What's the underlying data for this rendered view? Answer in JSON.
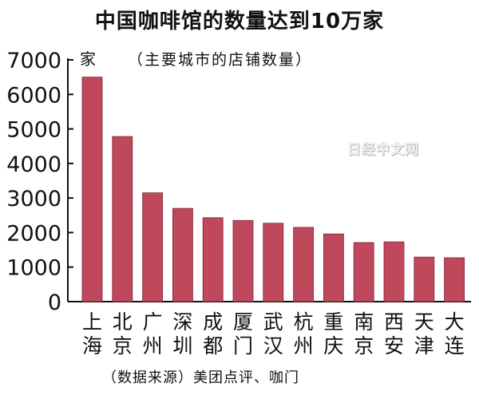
{
  "chart_data": {
    "type": "bar",
    "title": "中国咖啡馆的数量达到10万家",
    "subtitle": "（主要城市的店铺数量）",
    "unit": "家",
    "source": "（数据来源）美团点评、咖门",
    "watermark": "日经中文网",
    "categories": [
      "上海",
      "北京",
      "广州",
      "深圳",
      "成都",
      "厦门",
      "武汉",
      "杭州",
      "重庆",
      "南京",
      "西安",
      "天津",
      "大连"
    ],
    "values": [
      6500,
      4780,
      3150,
      2700,
      2430,
      2350,
      2270,
      2150,
      1960,
      1710,
      1730,
      1290,
      1270
    ],
    "ylim": [
      0,
      7000
    ],
    "yticks": [
      "0",
      "1000",
      "2000",
      "3000",
      "4000",
      "5000",
      "6000",
      "7000"
    ],
    "bar_color": "#c0485c",
    "grid": false,
    "legend": "none"
  }
}
